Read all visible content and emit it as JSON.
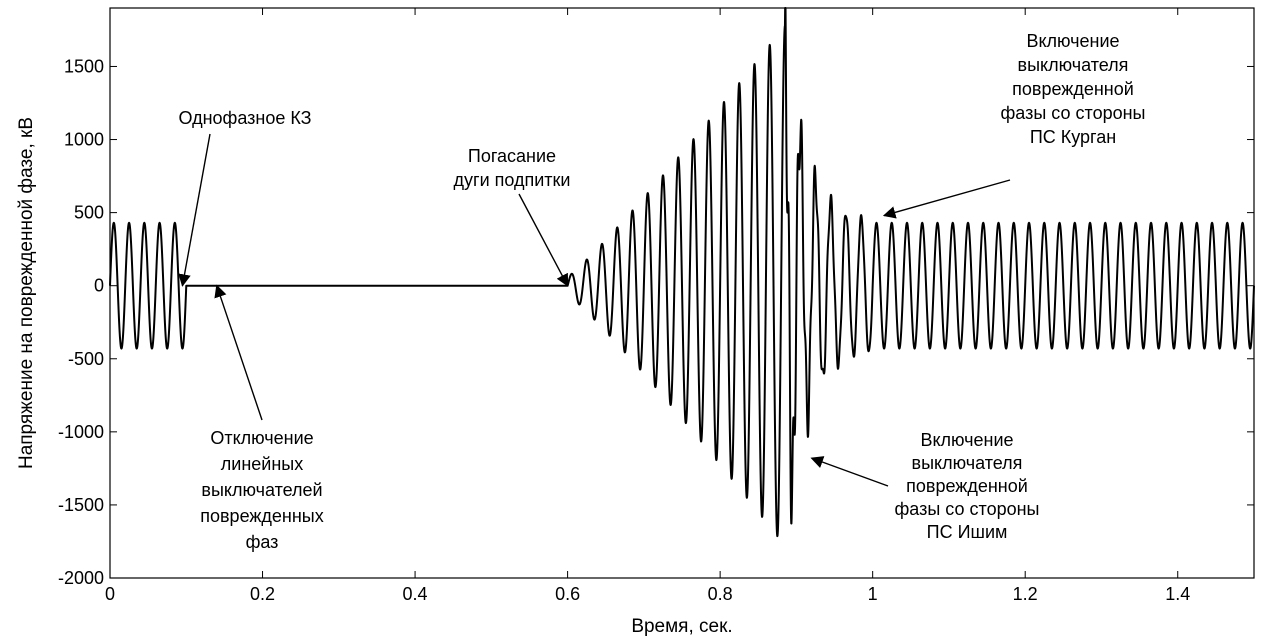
{
  "chart_data": {
    "type": "line",
    "title": "",
    "xlabel": "Время, сек.",
    "ylabel": "Напряжение на поврежденной фазе, кВ",
    "xlim": [
      0,
      1.5
    ],
    "ylim": [
      -2000,
      1900
    ],
    "grid": false,
    "xticks": [
      0,
      0.2,
      0.4,
      0.6,
      0.8,
      1,
      1.2,
      1.4
    ],
    "xtick_labels": [
      "0",
      "0.2",
      "0.4",
      "0.6",
      "0.8",
      "1",
      "1.2",
      "1.4"
    ],
    "yticks": [
      1500,
      1000,
      500,
      0,
      -500,
      -1000,
      -1500,
      -2000
    ],
    "ytick_labels": [
      "1500",
      "1000",
      "500",
      "0",
      "-500",
      "-1000",
      "-1500",
      "-2000"
    ],
    "line_color": "#000000",
    "series": [
      {
        "segments": [
          {
            "x_start": 0,
            "x_end": 0.1,
            "kind": "sine",
            "frequency_hz": 50,
            "amplitude": 430
          },
          {
            "x_start": 0.1,
            "x_end": 0.6,
            "kind": "flat",
            "value": 0
          },
          {
            "x_start": 0.6,
            "x_end": 0.885,
            "kind": "sine",
            "frequency_hz": 50,
            "amplitude_start": 60,
            "amplitude_end": 1780
          },
          {
            "x_start": 0.885,
            "x_end": 1.0,
            "kind": "transient",
            "frequency_hz": 50,
            "amplitude_start": 1780,
            "amplitude_end": 430
          },
          {
            "x_start": 1.0,
            "x_end": 1.5,
            "kind": "sine",
            "frequency_hz": 50,
            "amplitude": 430
          }
        ]
      }
    ],
    "annotations": [
      {
        "lines": [
          "Однофазное КЗ"
        ],
        "x": 0.095,
        "y": 0
      },
      {
        "lines": [
          "Отключение",
          "линейных",
          "выключателей",
          "поврежденных",
          "фаз"
        ],
        "x": 0.14,
        "y": 0
      },
      {
        "lines": [
          "Погасание",
          "дуги подпитки"
        ],
        "x": 0.6,
        "y": 0
      },
      {
        "lines": [
          "Включение",
          "выключателя",
          "поврежденной",
          "фазы со стороны",
          "ПС Курган"
        ],
        "x": 1.015,
        "y": 480
      },
      {
        "lines": [
          "Включение",
          "выключателя",
          "поврежденной",
          "фазы со стороны",
          "ПС Ишим"
        ],
        "x": 0.92,
        "y": -1180
      }
    ]
  }
}
